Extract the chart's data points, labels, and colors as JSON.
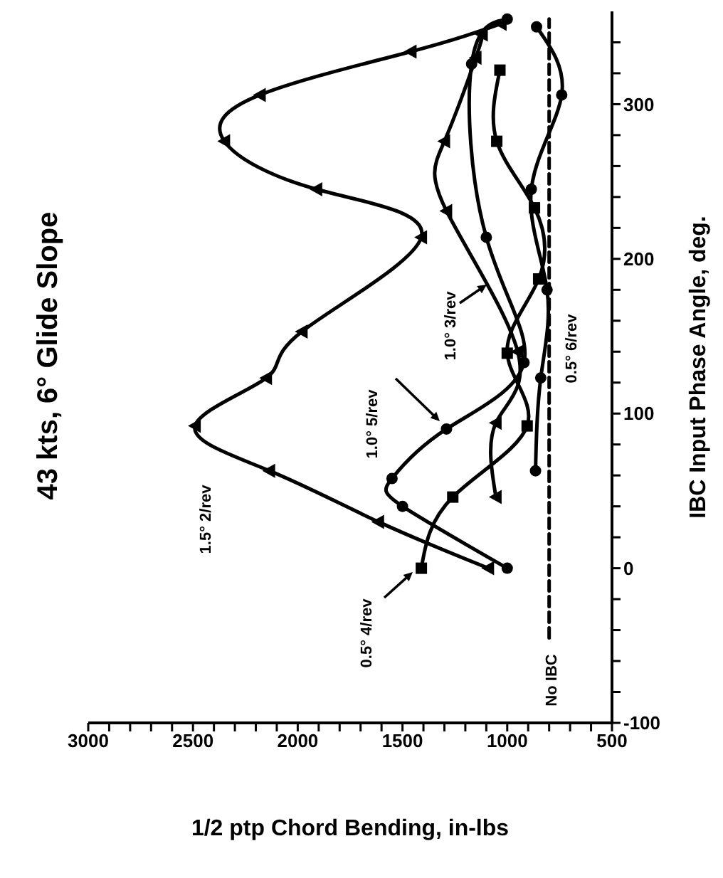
{
  "chart_data": {
    "type": "line",
    "title": "43 kts, 6° Glide Slope",
    "xlabel": "1/2 ptp Chord Bending, in-lbs",
    "ylabel": "IBC Input Phase Angle, deg.",
    "xlim": [
      3000,
      500
    ],
    "xticks": [
      3000,
      {
        "value": 2900,
        "label": null
      },
      {
        "value": 2800,
        "label": null
      },
      {
        "value": 2700,
        "label": null
      },
      {
        "value": 2600,
        "label": null
      },
      2500,
      {
        "value": 2400,
        "label": null
      },
      {
        "value": 2300,
        "label": null
      },
      {
        "value": 2200,
        "label": null
      },
      {
        "value": 2100,
        "label": null
      },
      2000,
      {
        "value": 1900,
        "label": null
      },
      {
        "value": 1800,
        "label": null
      },
      {
        "value": 1700,
        "label": null
      },
      {
        "value": 1600,
        "label": null
      },
      1500,
      {
        "value": 1400,
        "label": null
      },
      {
        "value": 1300,
        "label": null
      },
      {
        "value": 1200,
        "label": null
      },
      {
        "value": 1100,
        "label": null
      },
      1000,
      {
        "value": 900,
        "label": null
      },
      {
        "value": 800,
        "label": null
      },
      {
        "value": 700,
        "label": null
      },
      {
        "value": 600,
        "label": null
      },
      500
    ],
    "ylim": [
      -100,
      360
    ],
    "yticks": [
      -100,
      {
        "value": -80,
        "label": null
      },
      {
        "value": -60,
        "label": null
      },
      {
        "value": -40,
        "label": null
      },
      {
        "value": -20,
        "label": null
      },
      0,
      {
        "value": 20,
        "label": null
      },
      {
        "value": 40,
        "label": null
      },
      {
        "value": 60,
        "label": null
      },
      {
        "value": 80,
        "label": null
      },
      100,
      {
        "value": 120,
        "label": null
      },
      {
        "value": 140,
        "label": null
      },
      {
        "value": 160,
        "label": null
      },
      {
        "value": 180,
        "label": null
      },
      200,
      {
        "value": 220,
        "label": null
      },
      {
        "value": 240,
        "label": null
      },
      {
        "value": 260,
        "label": null
      },
      {
        "value": 280,
        "label": null
      },
      300,
      {
        "value": 320,
        "label": null
      },
      {
        "value": 340,
        "label": null
      }
    ],
    "series": [
      {
        "name": "1.5°  2/rev",
        "color": "#000000",
        "marker": "triangle",
        "x": [
          1090,
          1615,
          2135,
          2490,
          2150,
          1980,
          1410,
          1910,
          2350,
          2180,
          1460,
          1030
        ],
        "values": [
          0,
          30,
          63,
          92,
          123,
          153,
          214,
          245,
          276,
          306,
          334,
          352
        ]
      },
      {
        "name": "0.5°  4/rev",
        "color": "#000000",
        "marker": "square",
        "x": [
          1410,
          1260,
          905,
          1000,
          850,
          870,
          1050,
          1035
        ],
        "values": [
          0,
          46,
          92,
          139,
          187,
          233,
          276,
          322
        ]
      },
      {
        "name": "1.0°  5/rev",
        "color": "#000000",
        "marker": "circle",
        "x": [
          1000,
          1500,
          1550,
          1290,
          920,
          1100,
          1170,
          1000
        ],
        "values": [
          0,
          40,
          58,
          90,
          133,
          214,
          326,
          355
        ]
      },
      {
        "name": "1.0°  3/rev",
        "color": "#000000",
        "marker": "triangle",
        "x": [
          1054,
          1054,
          950,
          1290,
          1300,
          1150,
          1120
        ],
        "values": [
          46,
          94,
          140,
          231,
          276,
          330,
          345
        ]
      },
      {
        "name": "0.5°  6/rev",
        "color": "#000000",
        "marker": "circle",
        "x": [
          865,
          840,
          810,
          885,
          740,
          860
        ],
        "values": [
          63,
          123,
          180,
          245,
          306,
          350
        ]
      },
      {
        "name": "No IBC",
        "color": "#000000",
        "marker": "none",
        "line_style": "dashed",
        "x": [
          800,
          800,
          800
        ],
        "values": [
          -45,
          150,
          355
        ]
      }
    ]
  }
}
